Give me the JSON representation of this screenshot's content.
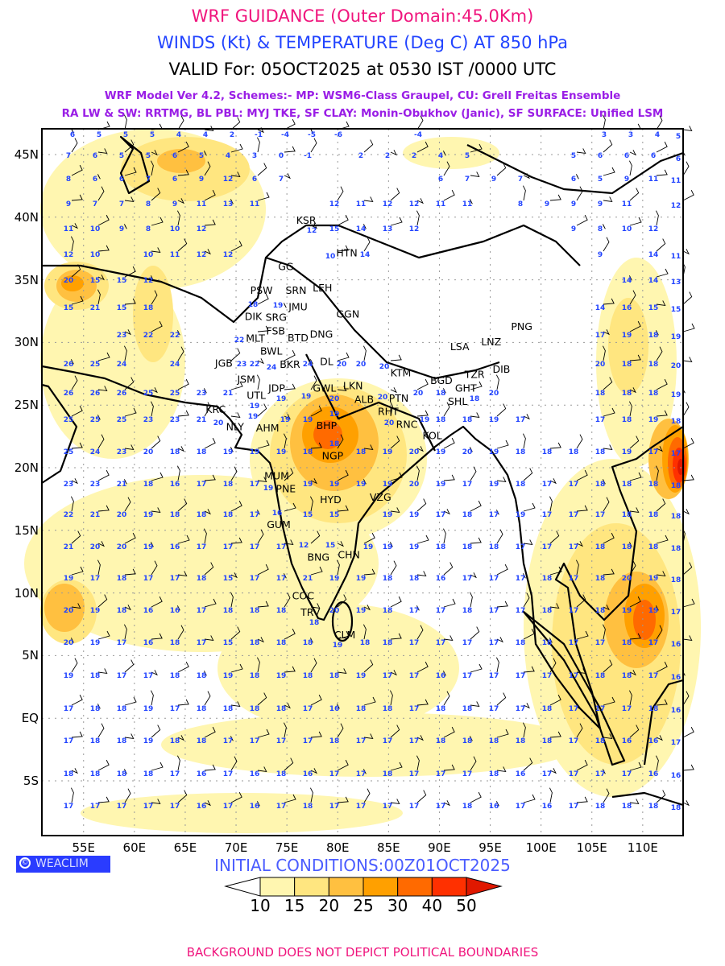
{
  "header": {
    "title": "WRF GUIDANCE (Outer Domain:45.0Km)",
    "subtitle": "WINDS (Kt) & TEMPERATURE (Deg C) AT 850 hPa",
    "valid": "VALID For: 05OCT2025 at 0530 IST /0000 UTC",
    "model_line1": "WRF Model Ver 4.2, Schemes:- MP: WSM6-Class Graupel, CU: Grell Freitas Ensemble",
    "model_line2": "RA LW & SW: RRTMG, BL PBL: MYJ TKE, SF CLAY: Monin-Obukhov (Janic), SF SURFACE: Unified LSM"
  },
  "axes": {
    "lat_labels": [
      "45N",
      "40N",
      "35N",
      "30N",
      "25N",
      "20N",
      "15N",
      "10N",
      "5N",
      "EQ",
      "5S"
    ],
    "lat_values": [
      45,
      40,
      35,
      30,
      25,
      20,
      15,
      10,
      5,
      0,
      -5
    ],
    "lon_labels": [
      "55E",
      "60E",
      "65E",
      "70E",
      "75E",
      "80E",
      "85E",
      "90E",
      "95E",
      "100E",
      "105E",
      "110E"
    ],
    "lon_values": [
      55,
      60,
      65,
      70,
      75,
      80,
      85,
      90,
      95,
      100,
      105,
      110
    ]
  },
  "cities": [
    {
      "code": "KSR",
      "lon": 76.9,
      "lat": 39.8
    },
    {
      "code": "HTN",
      "lon": 80.9,
      "lat": 37.2
    },
    {
      "code": "GG",
      "lon": 74.9,
      "lat": 36.1
    },
    {
      "code": "PSW",
      "lon": 72.5,
      "lat": 34.2
    },
    {
      "code": "SRN",
      "lon": 75.9,
      "lat": 34.2
    },
    {
      "code": "LEH",
      "lon": 78.5,
      "lat": 34.4
    },
    {
      "code": "JMU",
      "lon": 76.1,
      "lat": 32.9
    },
    {
      "code": "GGN",
      "lon": 81.0,
      "lat": 32.3
    },
    {
      "code": "DIK",
      "lon": 71.7,
      "lat": 32.1
    },
    {
      "code": "SRG",
      "lon": 74.1,
      "lat": 32.3
    },
    {
      "code": "FSB",
      "lon": 73.9,
      "lat": 31.6
    },
    {
      "code": "MLT",
      "lon": 72.3,
      "lat": 30.5
    },
    {
      "code": "BTD",
      "lon": 75.7,
      "lat": 30.4
    },
    {
      "code": "DNG",
      "lon": 78.0,
      "lat": 30.7
    },
    {
      "code": "BWL",
      "lon": 73.3,
      "lat": 29.6
    },
    {
      "code": "BKR",
      "lon": 75.3,
      "lat": 28.3
    },
    {
      "code": "DL",
      "lon": 78.9,
      "lat": 28.5
    },
    {
      "code": "JGB",
      "lon": 68.8,
      "lat": 28.4
    },
    {
      "code": "JSM",
      "lon": 71.0,
      "lat": 27.1
    },
    {
      "code": "JDP",
      "lon": 74.0,
      "lat": 26.4
    },
    {
      "code": "UTL",
      "lon": 72.3,
      "lat": 26.0
    },
    {
      "code": "GWL",
      "lon": 78.7,
      "lat": 26.4
    },
    {
      "code": "LKN",
      "lon": 81.5,
      "lat": 26.6
    },
    {
      "code": "ALB",
      "lon": 82.6,
      "lat": 25.5
    },
    {
      "code": "PTN",
      "lon": 86.0,
      "lat": 25.6
    },
    {
      "code": "RHT",
      "lon": 84.8,
      "lat": 24.8
    },
    {
      "code": "RNC",
      "lon": 86.8,
      "lat": 23.5
    },
    {
      "code": "KTM",
      "lon": 86.2,
      "lat": 27.6
    },
    {
      "code": "BGD",
      "lon": 90.2,
      "lat": 27.0
    },
    {
      "code": "GHT",
      "lon": 92.6,
      "lat": 26.4
    },
    {
      "code": "TZR",
      "lon": 93.7,
      "lat": 27.1
    },
    {
      "code": "DIB",
      "lon": 96.1,
      "lat": 27.9
    },
    {
      "code": "SHL",
      "lon": 91.8,
      "lat": 25.8
    },
    {
      "code": "LSA",
      "lon": 92.0,
      "lat": 29.7
    },
    {
      "code": "LNZ",
      "lon": 95.1,
      "lat": 30.1
    },
    {
      "code": "PNG",
      "lon": 98.1,
      "lat": 31.3
    },
    {
      "code": "KRC",
      "lon": 68.0,
      "lat": 24.7
    },
    {
      "code": "NLY",
      "lon": 69.9,
      "lat": 23.3
    },
    {
      "code": "AHM",
      "lon": 73.1,
      "lat": 23.2
    },
    {
      "code": "BHP",
      "lon": 78.9,
      "lat": 23.4
    },
    {
      "code": "NGP",
      "lon": 79.5,
      "lat": 21.0
    },
    {
      "code": "KOL",
      "lon": 89.3,
      "lat": 22.6
    },
    {
      "code": "MUM",
      "lon": 74.0,
      "lat": 19.4
    },
    {
      "code": "PNE",
      "lon": 74.5,
      "lat": 18.5
    },
    {
      "code": "HYD",
      "lon": 79.3,
      "lat": 17.5
    },
    {
      "code": "VZG",
      "lon": 84.2,
      "lat": 17.7
    },
    {
      "code": "GUM",
      "lon": 74.2,
      "lat": 15.5
    },
    {
      "code": "BNG",
      "lon": 78.1,
      "lat": 12.9
    },
    {
      "code": "CHN",
      "lon": 81.1,
      "lat": 13.1
    },
    {
      "code": "COC",
      "lon": 76.6,
      "lat": 9.8
    },
    {
      "code": "TRV",
      "lon": 77.3,
      "lat": 8.5
    },
    {
      "code": "CLM",
      "lon": 80.7,
      "lat": 6.7
    }
  ],
  "temperature_rows": [
    [
      6,
      5,
      5,
      5,
      4,
      4,
      2,
      -1,
      -4,
      -5,
      -6,
      null,
      null,
      -4,
      null,
      null,
      null,
      null,
      null,
      null,
      3,
      3,
      4,
      5
    ],
    [
      7,
      6,
      5,
      5,
      6,
      5,
      4,
      3,
      0,
      -1,
      null,
      2,
      2,
      2,
      4,
      5,
      null,
      null,
      null,
      5,
      6,
      6,
      6,
      6
    ],
    [
      8,
      6,
      6,
      7,
      6,
      9,
      12,
      6,
      7,
      null,
      null,
      null,
      null,
      null,
      6,
      7,
      9,
      7,
      null,
      6,
      5,
      9,
      11,
      11
    ],
    [
      9,
      7,
      7,
      8,
      9,
      11,
      13,
      11,
      null,
      null,
      12,
      11,
      12,
      12,
      11,
      11,
      null,
      8,
      9,
      9,
      9,
      11,
      null,
      12
    ],
    [
      11,
      10,
      9,
      8,
      10,
      12,
      null,
      null,
      null,
      12,
      15,
      14,
      13,
      12,
      null,
      null,
      null,
      null,
      null,
      9,
      8,
      10,
      12,
      null
    ],
    [
      12,
      10,
      null,
      10,
      11,
      12,
      12,
      null,
      null,
      null,
      10,
      14,
      null,
      null,
      null,
      null,
      null,
      null,
      null,
      null,
      9,
      null,
      14,
      11
    ],
    [
      20,
      15,
      15,
      12,
      null,
      null,
      null,
      null,
      null,
      null,
      null,
      null,
      null,
      null,
      null,
      null,
      null,
      null,
      null,
      null,
      null,
      14,
      14,
      13
    ],
    [
      15,
      21,
      15,
      18,
      null,
      null,
      null,
      18,
      19,
      null,
      null,
      null,
      null,
      null,
      null,
      null,
      null,
      null,
      null,
      null,
      14,
      16,
      15,
      15
    ],
    [
      null,
      null,
      23,
      22,
      22,
      null,
      null,
      22,
      null,
      null,
      null,
      null,
      null,
      null,
      null,
      null,
      null,
      null,
      null,
      null,
      17,
      19,
      18,
      19
    ],
    [
      26,
      25,
      24,
      null,
      24,
      null,
      23,
      22,
      24,
      24,
      20,
      20,
      20,
      null,
      null,
      null,
      null,
      null,
      null,
      null,
      20,
      18,
      18,
      20
    ],
    [
      26,
      26,
      26,
      25,
      25,
      23,
      21,
      19,
      19,
      19,
      20,
      null,
      20,
      20,
      18,
      18,
      20,
      null,
      null,
      null,
      18,
      18,
      18,
      19
    ],
    [
      25,
      25,
      25,
      23,
      23,
      21,
      20,
      19,
      19,
      19,
      19,
      null,
      20,
      19,
      18,
      18,
      19,
      17,
      null,
      null,
      17,
      18,
      19,
      18
    ],
    [
      25,
      24,
      23,
      20,
      18,
      18,
      19,
      19,
      19,
      18,
      18,
      18,
      19,
      20,
      19,
      20,
      19,
      18,
      18,
      18,
      18,
      19,
      17,
      17
    ],
    [
      23,
      23,
      21,
      18,
      16,
      17,
      18,
      17,
      19,
      19,
      19,
      19,
      19,
      20,
      19,
      17,
      19,
      18,
      17,
      17,
      18,
      18,
      18,
      18
    ],
    [
      22,
      21,
      20,
      19,
      18,
      18,
      18,
      17,
      16,
      15,
      15,
      null,
      19,
      19,
      17,
      18,
      17,
      19,
      17,
      17,
      17,
      18,
      18,
      18
    ],
    [
      21,
      20,
      20,
      19,
      16,
      17,
      17,
      17,
      17,
      12,
      15,
      19,
      19,
      19,
      18,
      18,
      18,
      17,
      17,
      17,
      18,
      18,
      18,
      18
    ],
    [
      19,
      17,
      18,
      17,
      17,
      18,
      15,
      17,
      17,
      21,
      19,
      19,
      18,
      18,
      16,
      17,
      17,
      17,
      18,
      17,
      18,
      20,
      19,
      18
    ],
    [
      20,
      19,
      18,
      16,
      16,
      17,
      18,
      18,
      18,
      18,
      20,
      19,
      18,
      17,
      17,
      18,
      17,
      17,
      18,
      17,
      18,
      19,
      19,
      17
    ],
    [
      20,
      19,
      17,
      16,
      18,
      17,
      15,
      18,
      18,
      18,
      19,
      18,
      18,
      17,
      17,
      17,
      17,
      18,
      18,
      17,
      17,
      18,
      17,
      16
    ],
    [
      19,
      18,
      17,
      17,
      18,
      18,
      19,
      18,
      19,
      18,
      18,
      19,
      17,
      17,
      16,
      17,
      17,
      17,
      17,
      17,
      18,
      18,
      17,
      16
    ],
    [
      17,
      18,
      18,
      19,
      17,
      18,
      18,
      18,
      18,
      17,
      16,
      18,
      18,
      17,
      18,
      18,
      17,
      17,
      18,
      17,
      17,
      17,
      18,
      16
    ],
    [
      17,
      18,
      18,
      19,
      18,
      18,
      17,
      17,
      17,
      17,
      18,
      17,
      17,
      17,
      18,
      18,
      18,
      18,
      18,
      17,
      18,
      16,
      16,
      17
    ],
    [
      18,
      18,
      18,
      18,
      17,
      16,
      17,
      16,
      18,
      16,
      17,
      17,
      18,
      17,
      17,
      17,
      18,
      16,
      17,
      17,
      17,
      17,
      16,
      16
    ],
    [
      17,
      17,
      17,
      17,
      17,
      16,
      17,
      16,
      17,
      18,
      17,
      17,
      17,
      17,
      17,
      18,
      16,
      17,
      16,
      17,
      18,
      18,
      18,
      18
    ]
  ],
  "footer": {
    "weaclim": "WEACLIM",
    "copyright_symbol": "©",
    "initial_conditions": "INITIAL CONDITIONS:00Z01OCT2025",
    "disclaimer": "BACKGROUND DOES NOT DEPICT POLITICAL BOUNDARIES"
  },
  "colorbar": {
    "labels": [
      "10",
      "15",
      "20",
      "25",
      "30",
      "40",
      "50"
    ],
    "colors": [
      "#ffffff",
      "#fff6b0",
      "#ffe680",
      "#ffc040",
      "#ffa000",
      "#ff6a00",
      "#ff3000",
      "#e01800"
    ]
  }
}
